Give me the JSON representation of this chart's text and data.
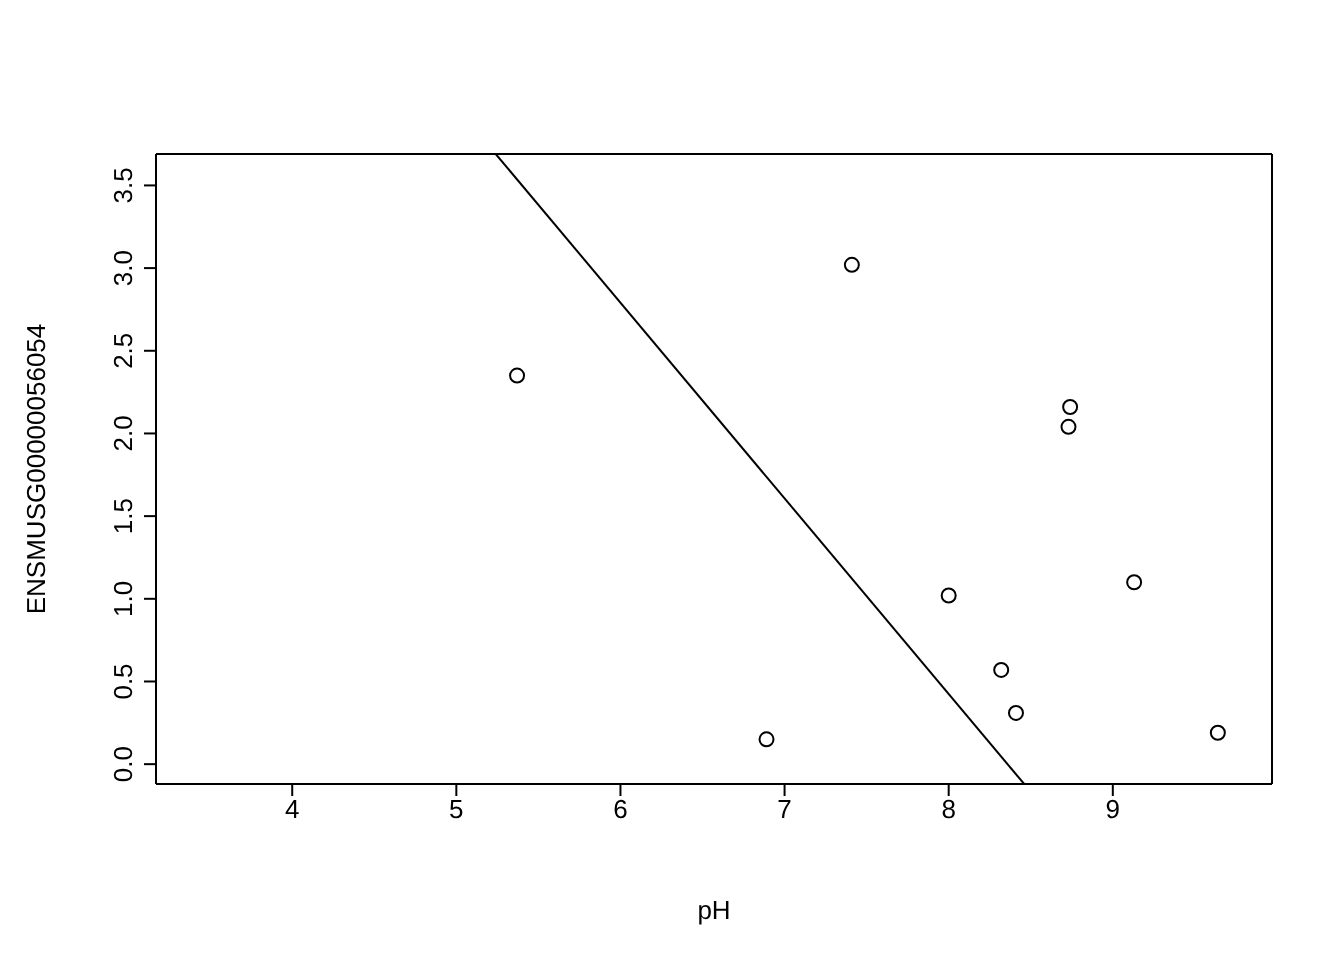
{
  "chart_data": {
    "type": "scatter",
    "xlabel": "pH",
    "ylabel": "ENSMUSG00000056054",
    "xlim": [
      3.17,
      9.97
    ],
    "ylim": [
      -0.12,
      3.69
    ],
    "xticks": [
      4,
      5,
      6,
      7,
      8,
      9
    ],
    "yticks": [
      {
        "value": 0,
        "label": "0.0"
      },
      {
        "value": 0.5,
        "label": "0.5"
      },
      {
        "value": 1,
        "label": "1.0"
      },
      {
        "value": 1.5,
        "label": "1.5"
      },
      {
        "value": 2,
        "label": "2.0"
      },
      {
        "value": 2.5,
        "label": "2.5"
      },
      {
        "value": 3,
        "label": "3.0"
      },
      {
        "value": 3.5,
        "label": "3.5"
      }
    ],
    "grid": false,
    "legend": false,
    "marker": "circle",
    "series": [
      {
        "type": "scatter",
        "color": "#000000",
        "x": [
          5.37,
          6.89,
          7.41,
          8.0,
          8.32,
          8.41,
          8.73,
          8.74,
          9.13,
          9.64
        ],
        "values": [
          2.35,
          0.15,
          3.02,
          1.02,
          0.57,
          0.31,
          2.04,
          2.16,
          1.1,
          0.19
        ]
      },
      {
        "type": "line",
        "color": "#000000",
        "marker": "none",
        "line_style": "solid",
        "x": [
          5.24,
          8.46
        ],
        "values": [
          3.69,
          -0.12
        ]
      }
    ]
  }
}
